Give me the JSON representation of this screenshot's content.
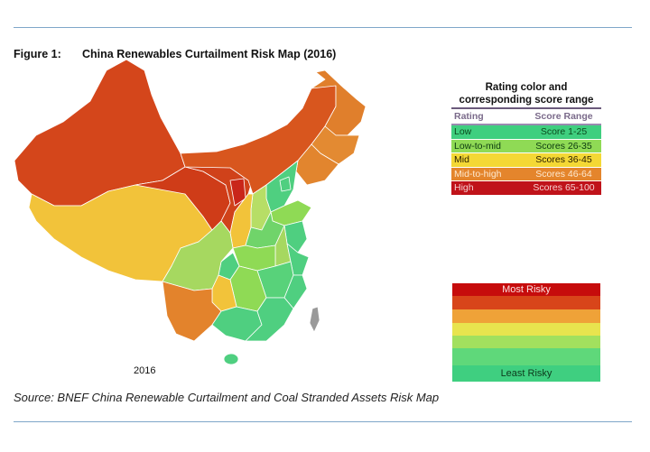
{
  "figure": {
    "number_label": "Figure 1:",
    "title": "China Renewables Curtailment Risk Map (2016)"
  },
  "map": {
    "year_label": "2016",
    "colors": {
      "high": "#c9261a",
      "high_orange": "#d8481a",
      "mid_to_high": "#e3832c",
      "mid": "#f2c33a",
      "low_to_mid": "#a6d860",
      "low": "#4fcf80",
      "no_data": "#9a9a9a"
    }
  },
  "legend": {
    "title_line1": "Rating color and",
    "title_line2": "corresponding score range",
    "col_rating": "Rating",
    "col_score": "Score Range",
    "rows": [
      {
        "rating": "Low",
        "score": "Score 1-25",
        "color": "#3fcf7f",
        "text_color": "#0b4a1e"
      },
      {
        "rating": "Low-to-mid",
        "score": "Scores 26-35",
        "color": "#8fda55",
        "text_color": "#0b3a10"
      },
      {
        "rating": "Mid",
        "score": "Scores 36-45",
        "color": "#f4d835",
        "text_color": "#2a2000"
      },
      {
        "rating": "Mid-to-high",
        "score": "Scores 46-64",
        "color": "#e4852c",
        "text_color": "#fde9d0"
      },
      {
        "rating": "High",
        "score": "Scores 65-100",
        "color": "#c0131a",
        "text_color": "#f6d0d0"
      }
    ]
  },
  "gradient": {
    "top_label": "Most Risky",
    "bottom_label": "Least Risky",
    "bands": [
      "#c60c0c",
      "#d8451a",
      "#efa238",
      "#e8e44e",
      "#a2e05e",
      "#5fd87a",
      "#3fcf80"
    ]
  },
  "source": "Source: BNEF China Renewable Curtailment and Coal Stranded Assets Risk Map"
}
